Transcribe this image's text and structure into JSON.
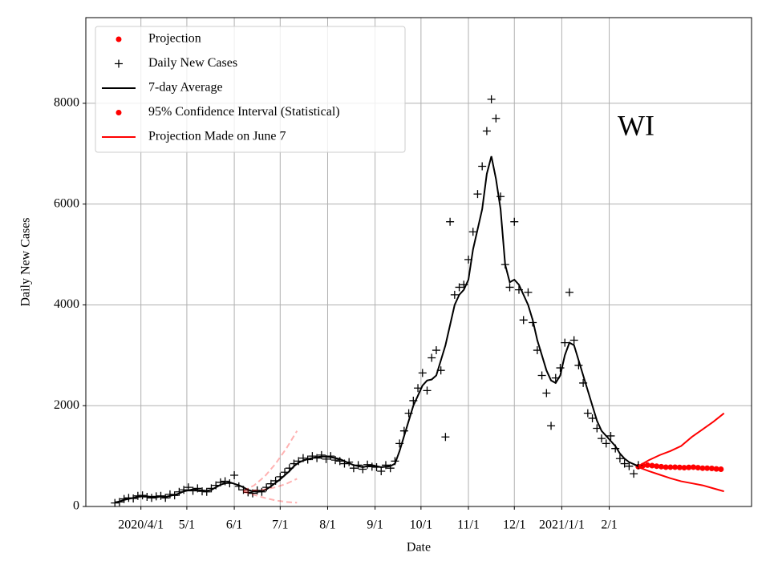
{
  "chart_data": {
    "type": "line",
    "annotation": "WI",
    "xlabel": "Date",
    "ylabel": "Daily New Cases",
    "xlim": [
      "2020-02-25",
      "2021-05-05"
    ],
    "ylim": [
      0,
      9700
    ],
    "yticks": [
      0,
      2000,
      4000,
      6000,
      8000
    ],
    "xticks": [
      {
        "value": "2020-04-01",
        "label": "2020/4/1"
      },
      {
        "value": "2020-05-01",
        "label": "5/1"
      },
      {
        "value": "2020-06-01",
        "label": "6/1"
      },
      {
        "value": "2020-07-01",
        "label": "7/1"
      },
      {
        "value": "2020-08-01",
        "label": "8/1"
      },
      {
        "value": "2020-09-01",
        "label": "9/1"
      },
      {
        "value": "2020-10-01",
        "label": "10/1"
      },
      {
        "value": "2020-11-01",
        "label": "11/1"
      },
      {
        "value": "2020-12-01",
        "label": "12/1"
      },
      {
        "value": "2021-01-01",
        "label": "2021/1/1"
      },
      {
        "value": "2021-02-01",
        "label": "2/1"
      }
    ],
    "grid": true,
    "legend": "upper left",
    "x": [
      "2020-03-15",
      "2020-03-18",
      "2020-03-21",
      "2020-03-24",
      "2020-03-27",
      "2020-03-30",
      "2020-04-02",
      "2020-04-05",
      "2020-04-08",
      "2020-04-11",
      "2020-04-14",
      "2020-04-17",
      "2020-04-20",
      "2020-04-23",
      "2020-04-26",
      "2020-04-29",
      "2020-05-02",
      "2020-05-05",
      "2020-05-08",
      "2020-05-11",
      "2020-05-14",
      "2020-05-17",
      "2020-05-20",
      "2020-05-23",
      "2020-05-26",
      "2020-05-29",
      "2020-06-01",
      "2020-06-04",
      "2020-06-07",
      "2020-06-10",
      "2020-06-13",
      "2020-06-16",
      "2020-06-19",
      "2020-06-22",
      "2020-06-25",
      "2020-06-28",
      "2020-07-01",
      "2020-07-04",
      "2020-07-07",
      "2020-07-10",
      "2020-07-13",
      "2020-07-16",
      "2020-07-19",
      "2020-07-22",
      "2020-07-25",
      "2020-07-28",
      "2020-07-31",
      "2020-08-03",
      "2020-08-06",
      "2020-08-09",
      "2020-08-12",
      "2020-08-15",
      "2020-08-18",
      "2020-08-21",
      "2020-08-24",
      "2020-08-27",
      "2020-08-30",
      "2020-09-02",
      "2020-09-05",
      "2020-09-08",
      "2020-09-11",
      "2020-09-14",
      "2020-09-17",
      "2020-09-20",
      "2020-09-23",
      "2020-09-26",
      "2020-09-29",
      "2020-10-02",
      "2020-10-05",
      "2020-10-08",
      "2020-10-11",
      "2020-10-14",
      "2020-10-17",
      "2020-10-20",
      "2020-10-23",
      "2020-10-26",
      "2020-10-29",
      "2020-11-01",
      "2020-11-04",
      "2020-11-07",
      "2020-11-10",
      "2020-11-13",
      "2020-11-16",
      "2020-11-19",
      "2020-11-22",
      "2020-11-25",
      "2020-11-28",
      "2020-12-01",
      "2020-12-04",
      "2020-12-07",
      "2020-12-10",
      "2020-12-13",
      "2020-12-16",
      "2020-12-19",
      "2020-12-22",
      "2020-12-25",
      "2020-12-28",
      "2020-12-31",
      "2021-01-03",
      "2021-01-06",
      "2021-01-09",
      "2021-01-12",
      "2021-01-15",
      "2021-01-18",
      "2021-01-21",
      "2021-01-24",
      "2021-01-27",
      "2021-01-30",
      "2021-02-02",
      "2021-02-05",
      "2021-02-08",
      "2021-02-11",
      "2021-02-14",
      "2021-02-17",
      "2021-02-20"
    ],
    "series": [
      {
        "name": "Projection",
        "color": "#ff0000",
        "style": "dot",
        "x": [
          "2021-02-20",
          "2021-02-23",
          "2021-02-26",
          "2021-03-01",
          "2021-03-04",
          "2021-03-07",
          "2021-03-10",
          "2021-03-13",
          "2021-03-16",
          "2021-03-19",
          "2021-03-22",
          "2021-03-25",
          "2021-03-28",
          "2021-03-31",
          "2021-04-03",
          "2021-04-06",
          "2021-04-09",
          "2021-04-12",
          "2021-04-15"
        ],
        "values": [
          790,
          810,
          820,
          810,
          800,
          790,
          780,
          780,
          780,
          775,
          770,
          775,
          780,
          770,
          760,
          760,
          755,
          745,
          740
        ]
      },
      {
        "name": "Daily New Cases",
        "color": "#000000",
        "style": "plus",
        "values": [
          70,
          90,
          150,
          170,
          160,
          210,
          220,
          190,
          170,
          200,
          210,
          170,
          240,
          220,
          290,
          330,
          380,
          310,
          360,
          300,
          290,
          360,
          420,
          480,
          500,
          460,
          620,
          400,
          330,
          280,
          260,
          320,
          290,
          380,
          450,
          510,
          590,
          680,
          760,
          850,
          900,
          960,
          930,
          1000,
          960,
          1020,
          940,
          1000,
          920,
          900,
          850,
          880,
          760,
          820,
          740,
          830,
          790,
          780,
          700,
          820,
          760,
          900,
          1250,
          1500,
          1850,
          2100,
          2350,
          2650,
          2300,
          2950,
          3100,
          2700,
          1380,
          5650,
          4200,
          4350,
          4400,
          4900,
          5450,
          6200,
          6750,
          7450,
          8080,
          7700,
          6150,
          4800,
          4350,
          5650,
          4300,
          3700,
          4250,
          3650,
          3100,
          2600,
          2250,
          1600,
          2550,
          2750,
          3250,
          4250,
          3300,
          2800,
          2450,
          1850,
          1750,
          1550,
          1350,
          1250,
          1400,
          1150,
          950,
          850,
          800,
          650,
          820
        ]
      },
      {
        "name": "7-day Average",
        "color": "#000000",
        "style": "line",
        "values": [
          80,
          100,
          130,
          150,
          170,
          190,
          200,
          200,
          190,
          180,
          200,
          190,
          210,
          230,
          260,
          300,
          320,
          340,
          330,
          320,
          310,
          330,
          380,
          430,
          460,
          480,
          450,
          420,
          380,
          330,
          300,
          290,
          300,
          340,
          400,
          470,
          540,
          620,
          700,
          800,
          870,
          910,
          940,
          960,
          980,
          990,
          990,
          980,
          960,
          940,
          900,
          860,
          820,
          800,
          780,
          800,
          820,
          800,
          780,
          790,
          800,
          850,
          1100,
          1400,
          1700,
          2000,
          2200,
          2400,
          2500,
          2520,
          2600,
          2900,
          3200,
          3600,
          4000,
          4200,
          4300,
          4500,
          5100,
          5500,
          5900,
          6600,
          6950,
          6500,
          5900,
          4800,
          4450,
          4500,
          4400,
          4200,
          4000,
          3700,
          3300,
          3000,
          2700,
          2500,
          2450,
          2600,
          3000,
          3250,
          3200,
          2900,
          2600,
          2300,
          2000,
          1700,
          1500,
          1400,
          1300,
          1200,
          1050,
          950,
          880,
          840,
          800
        ]
      },
      {
        "name": "95% Confidence Interval (Statistical)",
        "color": "#ff0000",
        "style": "band",
        "legend_style": "dot",
        "x": [
          "2021-02-20",
          "2021-02-27",
          "2021-03-06",
          "2021-03-13",
          "2021-03-20",
          "2021-03-27",
          "2021-04-03",
          "2021-04-10",
          "2021-04-17"
        ],
        "upper": [
          800,
          920,
          1020,
          1100,
          1200,
          1380,
          1530,
          1680,
          1850
        ],
        "lower": [
          780,
          700,
          630,
          560,
          500,
          460,
          420,
          360,
          300
        ]
      },
      {
        "name": "Projection Made on June 7",
        "color": "#ff0000",
        "alpha": 0.3,
        "style": "dashed-band",
        "legend_style": "line",
        "x": [
          "2020-06-07",
          "2020-06-14",
          "2020-06-21",
          "2020-06-28",
          "2020-07-05",
          "2020-07-12"
        ],
        "values": [
          300,
          320,
          340,
          380,
          450,
          550
        ],
        "upper": [
          310,
          420,
          600,
          850,
          1150,
          1500
        ],
        "lower": [
          290,
          230,
          170,
          120,
          90,
          75
        ]
      }
    ]
  }
}
